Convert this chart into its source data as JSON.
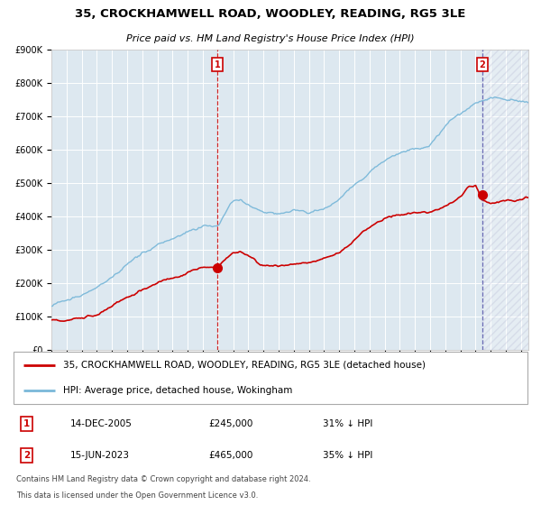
{
  "title": "35, CROCKHAMWELL ROAD, WOODLEY, READING, RG5 3LE",
  "subtitle": "Price paid vs. HM Land Registry's House Price Index (HPI)",
  "legend_line1": "35, CROCKHAMWELL ROAD, WOODLEY, READING, RG5 3LE (detached house)",
  "legend_line2": "HPI: Average price, detached house, Wokingham",
  "transaction1_date": "14-DEC-2005",
  "transaction1_price": "£245,000",
  "transaction1_pct": "31% ↓ HPI",
  "transaction2_date": "15-JUN-2023",
  "transaction2_price": "£465,000",
  "transaction2_pct": "35% ↓ HPI",
  "footer1": "Contains HM Land Registry data © Crown copyright and database right 2024.",
  "footer2": "This data is licensed under the Open Government Licence v3.0.",
  "hpi_color": "#7ab8d9",
  "price_color": "#cc0000",
  "marker_color": "#cc0000",
  "vline1_color": "#cc0000",
  "vline2_color": "#5555aa",
  "background_color": "#dde8f0",
  "grid_color": "#ffffff",
  "ylim": [
    0,
    900000
  ],
  "yticks": [
    0,
    100000,
    200000,
    300000,
    400000,
    500000,
    600000,
    700000,
    800000,
    900000
  ],
  "transaction1_x": 2005.958,
  "transaction1_y": 245000,
  "transaction2_x": 2023.458,
  "transaction2_y": 465000,
  "xmin": 1995,
  "xmax": 2026.5
}
